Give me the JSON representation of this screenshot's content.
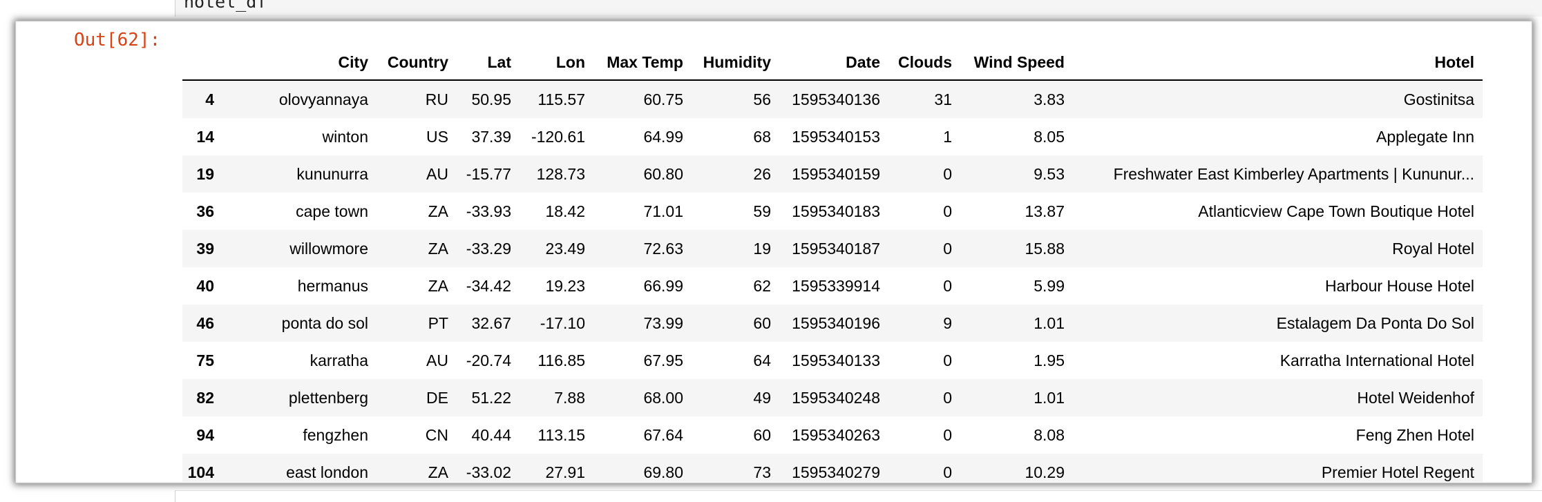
{
  "input_cell": {
    "code": "hotel_df"
  },
  "output_cell": {
    "prompt": "Out[62]:"
  },
  "table": {
    "columns": [
      "",
      "City",
      "Country",
      "Lat",
      "Lon",
      "Max Temp",
      "Humidity",
      "Date",
      "Clouds",
      "Wind Speed",
      "Hotel"
    ],
    "rows": [
      {
        "index": "4",
        "cells": [
          "olovyannaya",
          "RU",
          "50.95",
          "115.57",
          "60.75",
          "56",
          "1595340136",
          "31",
          "3.83",
          "Gostinitsa"
        ]
      },
      {
        "index": "14",
        "cells": [
          "winton",
          "US",
          "37.39",
          "-120.61",
          "64.99",
          "68",
          "1595340153",
          "1",
          "8.05",
          "Applegate Inn"
        ]
      },
      {
        "index": "19",
        "cells": [
          "kununurra",
          "AU",
          "-15.77",
          "128.73",
          "60.80",
          "26",
          "1595340159",
          "0",
          "9.53",
          "Freshwater East Kimberley Apartments | Kununur..."
        ]
      },
      {
        "index": "36",
        "cells": [
          "cape town",
          "ZA",
          "-33.93",
          "18.42",
          "71.01",
          "59",
          "1595340183",
          "0",
          "13.87",
          "Atlanticview Cape Town Boutique Hotel"
        ]
      },
      {
        "index": "39",
        "cells": [
          "willowmore",
          "ZA",
          "-33.29",
          "23.49",
          "72.63",
          "19",
          "1595340187",
          "0",
          "15.88",
          "Royal Hotel"
        ]
      },
      {
        "index": "40",
        "cells": [
          "hermanus",
          "ZA",
          "-34.42",
          "19.23",
          "66.99",
          "62",
          "1595339914",
          "0",
          "5.99",
          "Harbour House Hotel"
        ]
      },
      {
        "index": "46",
        "cells": [
          "ponta do sol",
          "PT",
          "32.67",
          "-17.10",
          "73.99",
          "60",
          "1595340196",
          "9",
          "1.01",
          "Estalagem Da Ponta Do Sol"
        ]
      },
      {
        "index": "75",
        "cells": [
          "karratha",
          "AU",
          "-20.74",
          "116.85",
          "67.95",
          "64",
          "1595340133",
          "0",
          "1.95",
          "Karratha International Hotel"
        ]
      },
      {
        "index": "82",
        "cells": [
          "plettenberg",
          "DE",
          "51.22",
          "7.88",
          "68.00",
          "49",
          "1595340248",
          "0",
          "1.01",
          "Hotel Weidenhof"
        ]
      },
      {
        "index": "94",
        "cells": [
          "fengzhen",
          "CN",
          "40.44",
          "113.15",
          "67.64",
          "60",
          "1595340263",
          "0",
          "8.08",
          "Feng Zhen Hotel"
        ]
      },
      {
        "index": "104",
        "cells": [
          "east london",
          "ZA",
          "-33.02",
          "27.91",
          "69.80",
          "73",
          "1595340279",
          "0",
          "10.29",
          "Premier Hotel Regent"
        ]
      }
    ]
  }
}
